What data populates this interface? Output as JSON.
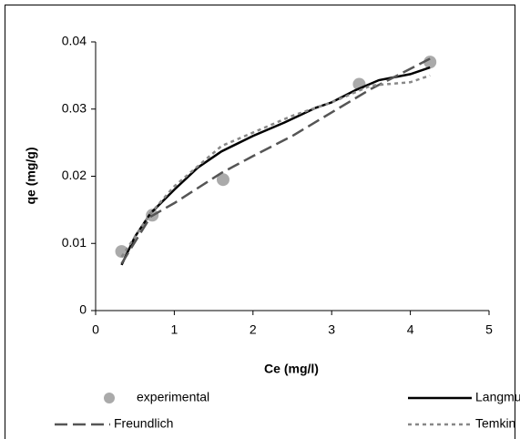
{
  "chart_data": {
    "type": "line",
    "x_label": "Ce (mg/l)",
    "y_label": "qe (mg/g)",
    "xlim": [
      0,
      5
    ],
    "xticks": [
      0,
      1,
      2,
      3,
      4,
      5
    ],
    "ylim": [
      0,
      0.04
    ],
    "yticks": [
      0,
      0.01,
      0.02,
      0.03,
      0.04
    ],
    "series": [
      {
        "name": "experimental",
        "style": "marker",
        "color": "#aaaaaa",
        "x": [
          0.33,
          0.72,
          1.62,
          3.35,
          4.25
        ],
        "values": [
          0.0088,
          0.0142,
          0.0195,
          0.0337,
          0.037
        ]
      },
      {
        "name": "Langmuir",
        "style": "solid",
        "color": "#000000",
        "x": [
          0.33,
          0.5,
          0.7,
          1.0,
          1.3,
          1.6,
          2.0,
          2.4,
          2.8,
          3.0,
          3.3,
          3.6,
          4.0,
          4.25
        ],
        "values": [
          0.0068,
          0.011,
          0.0145,
          0.018,
          0.0213,
          0.0237,
          0.026,
          0.028,
          0.0302,
          0.031,
          0.0328,
          0.0343,
          0.0352,
          0.0362
        ]
      },
      {
        "name": "Freundlich",
        "style": "dashed",
        "color": "#555555",
        "x": [
          0.33,
          0.7,
          1.0,
          1.6,
          2.0,
          2.5,
          3.0,
          3.5,
          4.25
        ],
        "values": [
          0.007,
          0.014,
          0.016,
          0.0205,
          0.023,
          0.026,
          0.0295,
          0.033,
          0.0375
        ]
      },
      {
        "name": "Temkin",
        "style": "dotted",
        "color": "#888888",
        "x": [
          0.33,
          0.7,
          1.0,
          1.6,
          2.0,
          2.5,
          3.0,
          3.5,
          4.0,
          4.25
        ],
        "values": [
          0.008,
          0.0145,
          0.0185,
          0.0245,
          0.0265,
          0.029,
          0.031,
          0.0335,
          0.034,
          0.035
        ]
      }
    ]
  }
}
